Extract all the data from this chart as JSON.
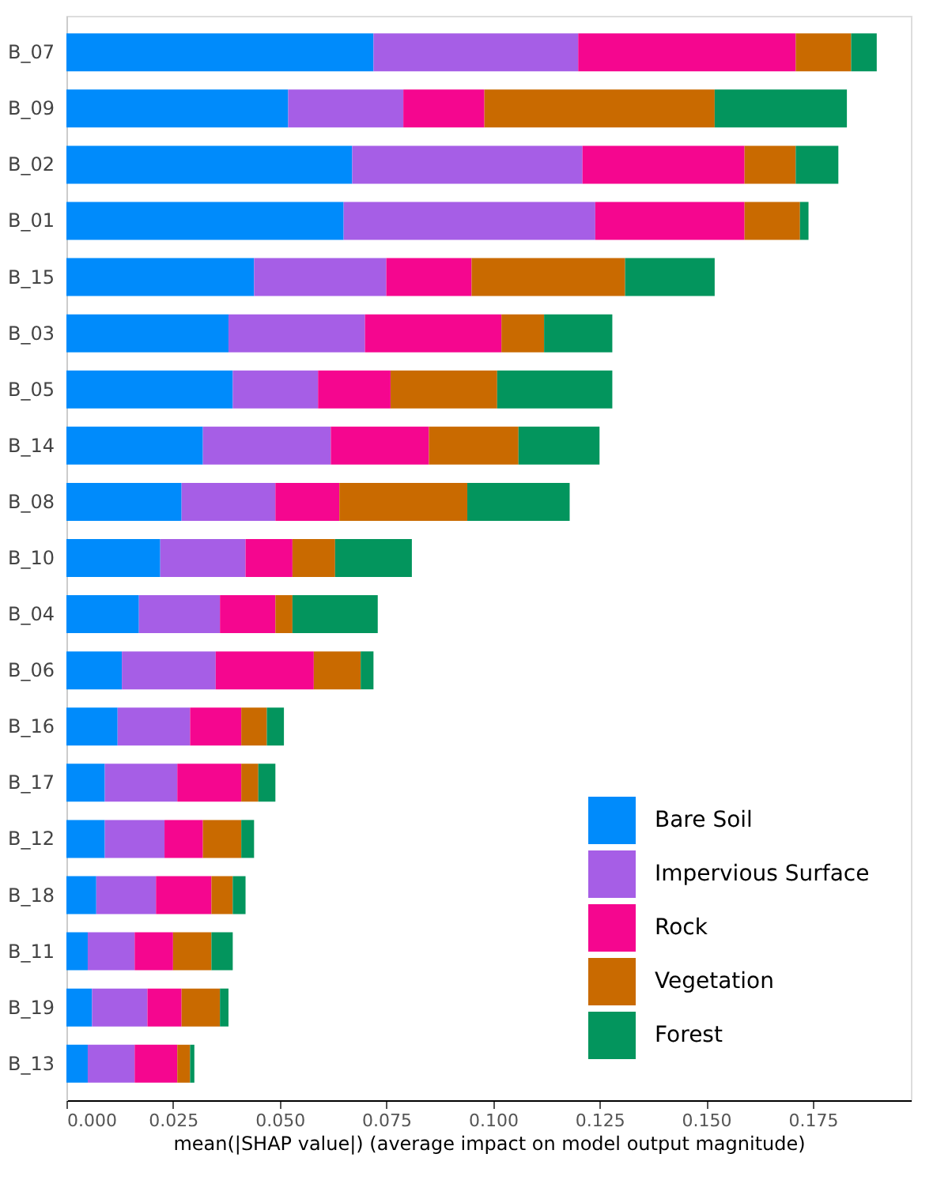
{
  "chart_data": {
    "type": "bar",
    "orientation": "horizontal",
    "stacked": true,
    "xlabel": "mean(|SHAP value|) (average impact on model output magnitude)",
    "categories": [
      "B_07",
      "B_09",
      "B_02",
      "B_01",
      "B_15",
      "B_03",
      "B_05",
      "B_14",
      "B_08",
      "B_10",
      "B_04",
      "B_06",
      "B_16",
      "B_17",
      "B_12",
      "B_18",
      "B_11",
      "B_19",
      "B_13"
    ],
    "series": [
      {
        "name": "Bare Soil",
        "color": "#008bfb",
        "values": [
          0.072,
          0.052,
          0.067,
          0.065,
          0.044,
          0.038,
          0.039,
          0.032,
          0.027,
          0.022,
          0.017,
          0.013,
          0.012,
          0.009,
          0.009,
          0.007,
          0.005,
          0.006,
          0.005
        ]
      },
      {
        "name": "Impervious Surface",
        "color": "#a65ee6",
        "values": [
          0.048,
          0.027,
          0.054,
          0.059,
          0.031,
          0.032,
          0.02,
          0.03,
          0.022,
          0.02,
          0.019,
          0.022,
          0.017,
          0.017,
          0.014,
          0.014,
          0.011,
          0.013,
          0.011
        ]
      },
      {
        "name": "Rock",
        "color": "#f5068f",
        "values": [
          0.051,
          0.019,
          0.038,
          0.035,
          0.02,
          0.032,
          0.017,
          0.023,
          0.015,
          0.011,
          0.013,
          0.023,
          0.012,
          0.015,
          0.009,
          0.013,
          0.009,
          0.008,
          0.01
        ]
      },
      {
        "name": "Vegetation",
        "color": "#c96a00",
        "values": [
          0.013,
          0.054,
          0.012,
          0.013,
          0.036,
          0.01,
          0.025,
          0.021,
          0.03,
          0.01,
          0.004,
          0.011,
          0.006,
          0.004,
          0.009,
          0.005,
          0.009,
          0.009,
          0.003
        ]
      },
      {
        "name": "Forest",
        "color": "#03955d",
        "values": [
          0.006,
          0.031,
          0.01,
          0.002,
          0.021,
          0.016,
          0.027,
          0.019,
          0.024,
          0.018,
          0.02,
          0.003,
          0.004,
          0.004,
          0.003,
          0.003,
          0.005,
          0.002,
          0.001
        ]
      }
    ],
    "xlim": [
      0,
      0.198
    ],
    "xticks": [
      {
        "value": 0,
        "label": "0.000"
      },
      {
        "value": 0.025,
        "label": "0.025"
      },
      {
        "value": 0.05,
        "label": "0.050"
      },
      {
        "value": 0.075,
        "label": "0.075"
      },
      {
        "value": 0.1,
        "label": "0.100"
      },
      {
        "value": 0.125,
        "label": "0.125"
      },
      {
        "value": 0.15,
        "label": "0.150"
      },
      {
        "value": 0.175,
        "label": "0.175"
      }
    ],
    "legend": "bottom right",
    "grid": false
  }
}
